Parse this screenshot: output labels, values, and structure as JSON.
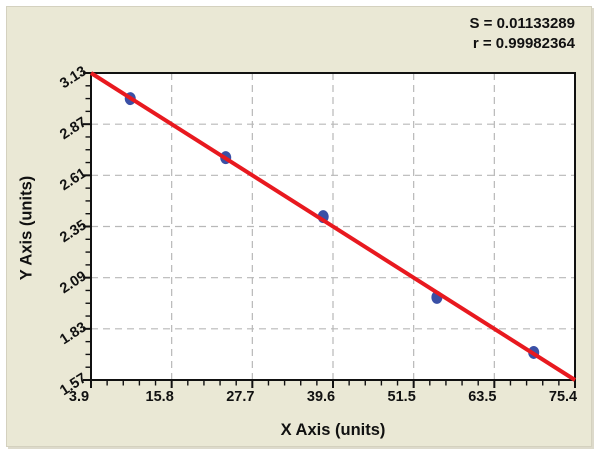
{
  "stats": {
    "s_line": "S = 0.01133289",
    "r_line": "r = 0.99982364"
  },
  "chart_data": {
    "type": "scatter",
    "title": "",
    "xlabel": "X Axis (units)",
    "ylabel": "Y Axis (units)",
    "xlim": [
      3.9,
      75.4
    ],
    "ylim": [
      1.57,
      3.13
    ],
    "x_tick_labels": [
      "3.9",
      "15.8",
      "27.7",
      "39.6",
      "51.5",
      "63.5",
      "75.4"
    ],
    "y_tick_labels": [
      "3.13",
      "2.87",
      "2.61",
      "2.35",
      "2.09",
      "1.83",
      "1.57"
    ],
    "x_minor_divisions": 5,
    "y_minor_divisions": 4,
    "grid": "dashed",
    "legend": "none",
    "points": [
      {
        "x": 9.7,
        "y": 3.0
      },
      {
        "x": 23.8,
        "y": 2.7
      },
      {
        "x": 38.2,
        "y": 2.4
      },
      {
        "x": 55.0,
        "y": 1.99
      },
      {
        "x": 69.3,
        "y": 1.71
      }
    ],
    "trendline": {
      "x1": 3.9,
      "y1": 3.13,
      "x2": 75.4,
      "y2": 1.57
    },
    "annotations": [
      "S = 0.01133289",
      "r = 0.99982364"
    ]
  },
  "colors": {
    "panel_bg": "#eae8d5",
    "plot_bg": "#ffffff",
    "frame": "#111111",
    "grid": "#b8b8b8",
    "tick": "#111111",
    "trendline": "#e8191f",
    "point_fill": "#3a50a6",
    "text": "#111111"
  }
}
